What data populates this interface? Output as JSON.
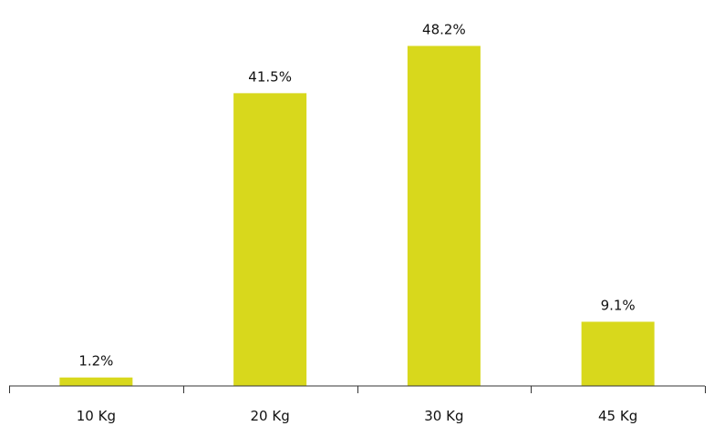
{
  "chart_data": {
    "type": "bar",
    "categories": [
      "10 Kg",
      "20 Kg",
      "30 Kg",
      "45 Kg"
    ],
    "values": [
      1.2,
      41.5,
      48.2,
      9.1
    ],
    "value_labels": [
      "1.2%",
      "41.5%",
      "48.2%",
      "9.1%"
    ],
    "unit": "%",
    "title": "",
    "xlabel": "",
    "ylabel": "",
    "ylim": [
      0,
      50
    ],
    "grid": false,
    "legend": "none",
    "colors": {
      "bar": "#d8d81c",
      "text": "#111111",
      "axis": "#333333"
    }
  }
}
